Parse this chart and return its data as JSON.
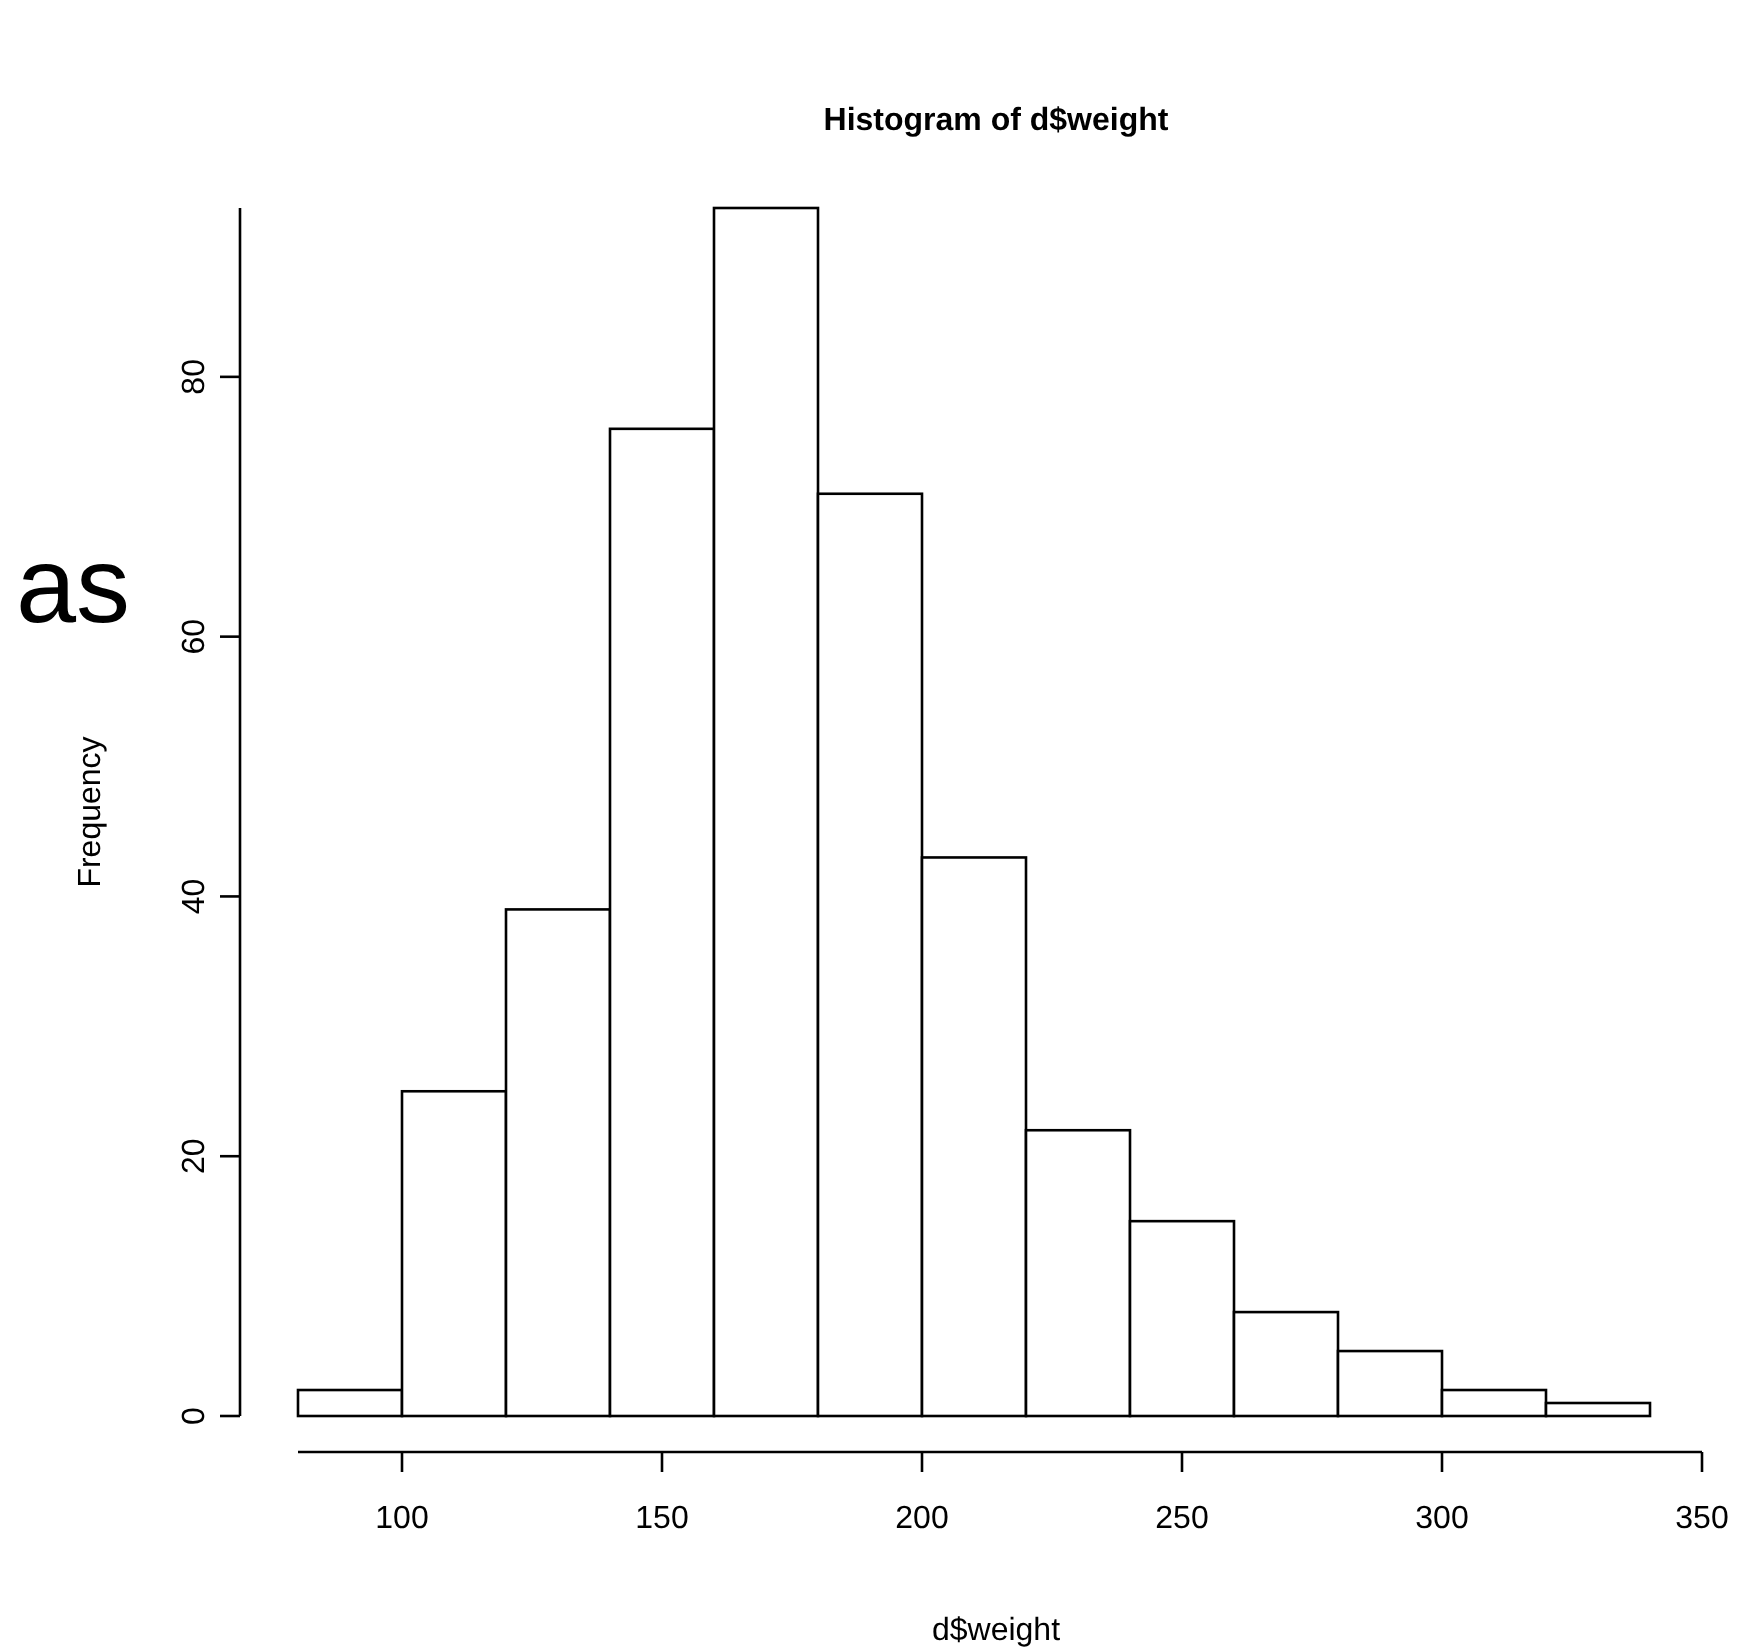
{
  "chart_data": {
    "type": "histogram",
    "title": "Histogram of d$weight",
    "xlabel": "d$weight",
    "ylabel": "Frequency",
    "bins": [
      80,
      100,
      120,
      140,
      160,
      180,
      200,
      220,
      240,
      260,
      280,
      300,
      320,
      340
    ],
    "values": [
      2,
      25,
      39,
      76,
      93,
      71,
      43,
      22,
      15,
      8,
      5,
      2,
      1
    ],
    "color": "#ffffff",
    "xlim": [
      80,
      350
    ],
    "xticks": [
      100,
      150,
      200,
      250,
      300,
      350
    ],
    "ylim": [
      0,
      93
    ],
    "yticks": [
      0,
      20,
      40,
      60,
      80
    ],
    "annotations": [
      "as"
    ]
  }
}
